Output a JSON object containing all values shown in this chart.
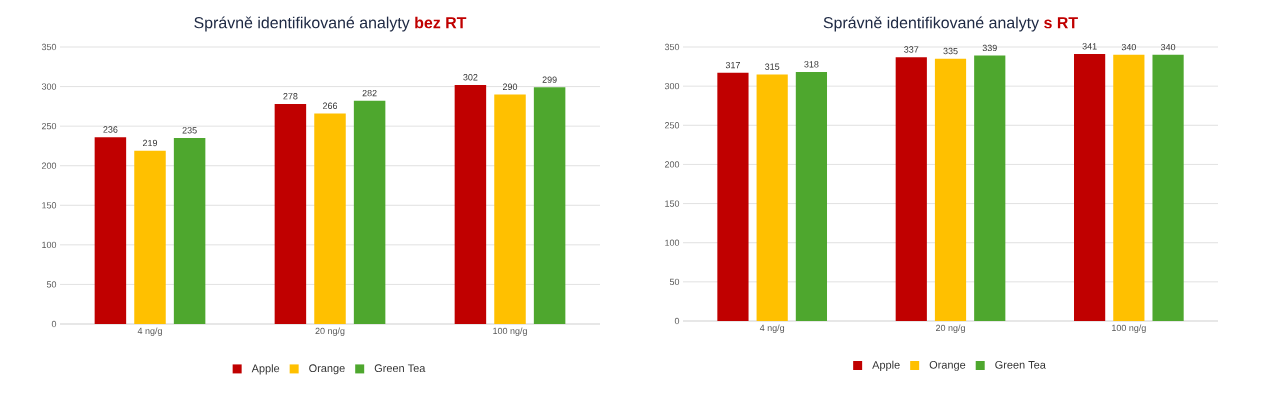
{
  "chart_data": [
    {
      "type": "bar",
      "title": "Správně identifikované analyty **bez RT**",
      "categories": [
        "4 ng/g",
        "20 ng/g",
        "100 ng/g"
      ],
      "series": [
        {
          "name": "Apple",
          "color": "#c00000",
          "values": [
            236,
            278,
            302
          ]
        },
        {
          "name": "Orange",
          "color": "#ffc000",
          "values": [
            219,
            266,
            290
          ]
        },
        {
          "name": "Green Tea",
          "color": "#4ea72e",
          "values": [
            235,
            282,
            299
          ]
        }
      ],
      "ylim": [
        0,
        350
      ],
      "yticks": [
        0,
        50,
        100,
        150,
        200,
        250,
        300,
        350
      ],
      "grid": "y",
      "legend": "bottom",
      "data_labels": true
    },
    {
      "type": "bar",
      "title": "Správně identifikované analyty **s RT**",
      "categories": [
        "4 ng/g",
        "20 ng/g",
        "100 ng/g"
      ],
      "series": [
        {
          "name": "Apple",
          "color": "#c00000",
          "values": [
            317,
            337,
            341
          ]
        },
        {
          "name": "Orange",
          "color": "#ffc000",
          "values": [
            315,
            335,
            340
          ]
        },
        {
          "name": "Green Tea",
          "color": "#4ea72e",
          "values": [
            318,
            339,
            340
          ]
        }
      ],
      "ylim": [
        0,
        350
      ],
      "yticks": [
        0,
        50,
        100,
        150,
        200,
        250,
        300,
        350
      ],
      "grid": "y",
      "legend": "bottom",
      "data_labels": true
    }
  ]
}
